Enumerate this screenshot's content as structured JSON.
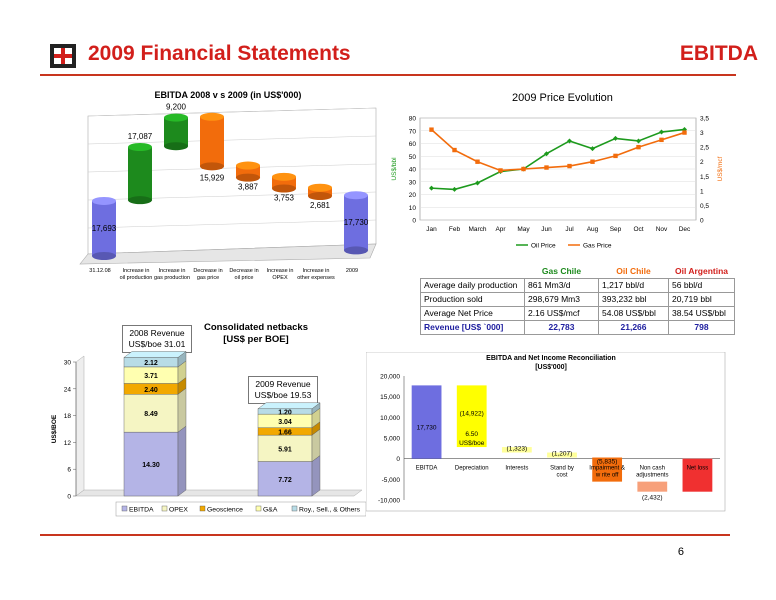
{
  "header": {
    "title": "2009 Financial Statements",
    "section": "EBITDA",
    "page_number": "6",
    "colors": {
      "accent": "#d21f1b"
    }
  },
  "logo": {
    "icon": "company-logo-icon"
  },
  "chart_data": [
    {
      "type": "bar",
      "title": "EBITDA 2008 v s 2009 (in US$'000)",
      "categories": [
        "31.12.08",
        "Increase in oil production",
        "Increase in gas production",
        "Decrease in gas price",
        "Decrease in oil price",
        "Increase in OPEX",
        "Increase in other expenses",
        "2009"
      ],
      "values": [
        17693,
        17087,
        9200,
        15929,
        3887,
        3753,
        2681,
        17730
      ],
      "value_labels": [
        "17,693",
        "17,087",
        "9,200",
        "15,929",
        "3,887",
        "3,753",
        "2,681",
        "17,730"
      ],
      "colors": [
        "#6e6ee0",
        "#1d8a1d",
        "#1d8a1d",
        "#f26c0c",
        "#f26c0c",
        "#f26c0c",
        "#f26c0c",
        "#6e6ee0"
      ]
    },
    {
      "type": "line",
      "title": "2009 Price Evolution",
      "categories": [
        "Jan",
        "Feb",
        "March",
        "Apr",
        "May",
        "Jun",
        "Jul",
        "Aug",
        "Sep",
        "Oct",
        "Nov",
        "Dec"
      ],
      "ylabel": "US$/bbl",
      "y2label": "US$/mcf",
      "ylim": [
        0,
        80
      ],
      "y2lim": [
        0,
        3.5
      ],
      "yticks": [
        "0",
        "10",
        "20",
        "30",
        "40",
        "50",
        "60",
        "70",
        "80"
      ],
      "y2ticks": [
        "0",
        "0,5",
        "1",
        "1,5",
        "2",
        "2,5",
        "3",
        "3,5"
      ],
      "series": [
        {
          "name": "Oil Price",
          "axis": "left",
          "color": "#1d9a1d",
          "values": [
            25,
            24,
            29,
            38,
            40,
            52,
            62,
            56,
            64,
            62,
            69,
            71
          ]
        },
        {
          "name": "Gas Price",
          "axis": "right",
          "color": "#f26c0c",
          "values": [
            3.1,
            2.4,
            2.0,
            1.7,
            1.75,
            1.8,
            1.85,
            2.0,
            2.2,
            2.5,
            2.75,
            3.0
          ]
        }
      ],
      "legend": "bottom"
    },
    {
      "type": "bar",
      "title": "Consolidated netbacks [US$ per BOE]",
      "ylabel": "US$/BOE",
      "ylim": [
        0,
        30
      ],
      "yticks": [
        "0",
        "6",
        "12",
        "18",
        "24",
        "30"
      ],
      "stacked": true,
      "categories": [
        "2008",
        "2009"
      ],
      "series": [
        {
          "name": "EBITDA",
          "color": "#b4b4e6",
          "values": [
            14.3,
            7.72
          ],
          "labels": [
            "14.30",
            "7.72"
          ]
        },
        {
          "name": "OPEX",
          "color": "#f5f5c3",
          "values": [
            8.49,
            5.91
          ],
          "labels": [
            "8.49",
            "5.91"
          ]
        },
        {
          "name": "Geoscience",
          "color": "#f2a800",
          "values": [
            2.4,
            1.66
          ],
          "labels": [
            "2.40",
            "1.66"
          ]
        },
        {
          "name": "G&A",
          "color": "#ffffb0",
          "values": [
            3.71,
            3.04
          ],
          "labels": [
            "3.71",
            "3.04"
          ]
        },
        {
          "name": "Roy., Sell., & Others",
          "color": "#b8dce6",
          "values": [
            2.12,
            1.2
          ],
          "labels": [
            "2.12",
            "1.20"
          ]
        }
      ],
      "notes": [
        {
          "line1": "2008 Revenue",
          "line2": "US$/boe 31.01"
        },
        {
          "line1": "2009 Revenue",
          "line2": "US$/boe 19.53"
        }
      ],
      "legend": "bottom"
    },
    {
      "type": "bar",
      "title": "EBITDA and Net Income Reconciliation",
      "subtitle": "[US$'000]",
      "ylim": [
        -10000,
        20000
      ],
      "yticks": [
        "-10,000",
        "-5,000",
        "0",
        "5,000",
        "10,000",
        "15,000",
        "20,000"
      ],
      "categories": [
        "EBITDA",
        "Depreciation",
        "Interests",
        "Stand by cost",
        "Impairment & w rite off",
        "Non cash adjustments",
        "Net loss"
      ],
      "values": [
        17730,
        -14922,
        -1323,
        -1207,
        -5835,
        -2432,
        -7989
      ],
      "value_labels": [
        "17,730",
        "(14,922)",
        "(1,323)",
        "(1,207)",
        "(5,835)",
        "(2,432)",
        "(7,989)"
      ],
      "colors": [
        "#6e6ee0",
        "#ffff00",
        "#ffff99",
        "#ffff99",
        "#f26c0c",
        "#f7a07a",
        "#f03030"
      ],
      "annotation": {
        "line1": "6.50",
        "line2": "US$/boe"
      }
    }
  ],
  "kpi_table": {
    "headers": [
      "",
      "Gas Chile",
      "Oil Chile",
      "Oil Argentina"
    ],
    "header_colors": [
      "#000000",
      "#1d8a1d",
      "#f26c0c",
      "#d21f1b"
    ],
    "rows": [
      [
        "Average daily production",
        "861 Mm3/d",
        "1,217 bbl/d",
        "56 bbl/d"
      ],
      [
        "Production sold",
        "298,679 Mm3",
        "393,232 bbl",
        "20,719 bbl"
      ],
      [
        "Average Net Price",
        "2.16 US$/mcf",
        "54.08 US$/bbl",
        "38.54 US$/bbl"
      ]
    ],
    "revenue_row": [
      "Revenue [US$ `000]",
      "22,783",
      "21,266",
      "798"
    ]
  }
}
